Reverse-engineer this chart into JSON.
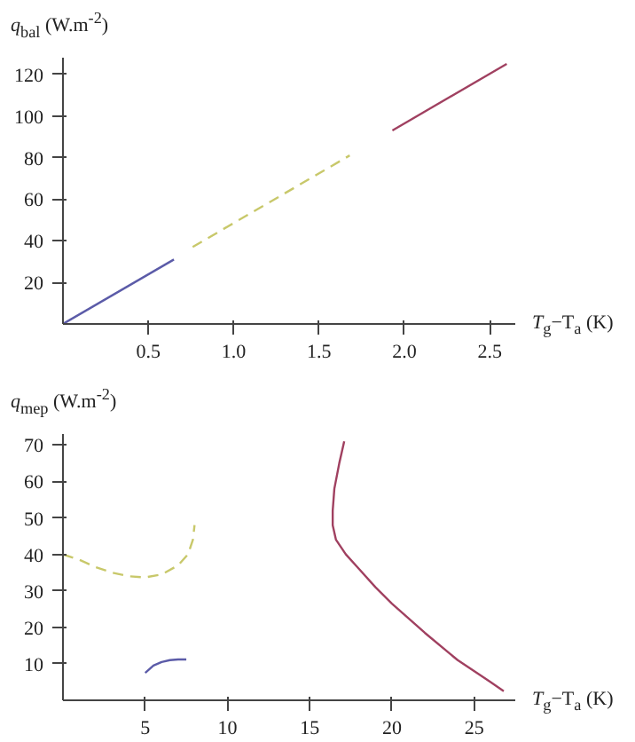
{
  "chart_data": [
    {
      "type": "line",
      "xlabel": "T$_{g}$−T$_{a}$ (K)",
      "ylabel": "q$_{bal}$ (W.m$^{-2}$)",
      "xlim": [
        0,
        2.65
      ],
      "ylim": [
        0,
        128
      ],
      "xticks": [
        {
          "value": 0.5,
          "label": "0.5"
        },
        {
          "value": 1,
          "label": "1.0"
        },
        {
          "value": 1.5,
          "label": "1.5"
        },
        {
          "value": 2,
          "label": "2.0"
        },
        {
          "value": 2.5,
          "label": "2.5"
        }
      ],
      "yticks": [
        20,
        40,
        60,
        80,
        100,
        120
      ],
      "grid": false,
      "series": [
        {
          "color": "#5b5ba8",
          "line_style": "solid",
          "x": [
            0,
            0.65
          ],
          "values": [
            0,
            31
          ]
        },
        {
          "color": "#c8c86a",
          "line_style": "dashed",
          "x": [
            0.76,
            1.68
          ],
          "values": [
            37,
            81
          ]
        },
        {
          "color": "#a04060",
          "line_style": "solid",
          "x": [
            1.93,
            2.6
          ],
          "values": [
            93,
            125
          ]
        }
      ]
    },
    {
      "type": "line",
      "xlabel": "T$_{g}$−T$_{a}$ (K)",
      "ylabel": "q$_{mep}$ (W.m$^{-2}$)",
      "xlim": [
        0,
        27.5
      ],
      "ylim": [
        0,
        73
      ],
      "xticks": [
        5,
        10,
        15,
        20,
        25
      ],
      "yticks": [
        10,
        20,
        30,
        40,
        50,
        60,
        70
      ],
      "grid": false,
      "series": [
        {
          "color": "#c8c86a",
          "line_style": "dashed",
          "x": [
            0,
            1,
            2,
            3,
            4,
            5,
            6,
            7,
            7.6,
            7.9,
            8
          ],
          "values": [
            40,
            38.5,
            36.5,
            35,
            34,
            33.7,
            34.5,
            37,
            40,
            44,
            48
          ]
        },
        {
          "color": "#5b5ba8",
          "line_style": "solid",
          "x": [
            5,
            5.5,
            6,
            6.5,
            7,
            7.5
          ],
          "values": [
            7.5,
            9.5,
            10.5,
            11,
            11.2,
            11.2
          ]
        },
        {
          "color": "#a04060",
          "line_style": "solid",
          "x": [
            17.1,
            16.8,
            16.5,
            16.4,
            16.4,
            16.6,
            17.2,
            18,
            19,
            20,
            22,
            24,
            26,
            26.8
          ],
          "values": [
            71,
            65,
            58,
            52,
            48,
            44,
            40,
            36,
            31,
            26.5,
            18.5,
            11,
            5,
            2.5
          ]
        }
      ]
    }
  ]
}
